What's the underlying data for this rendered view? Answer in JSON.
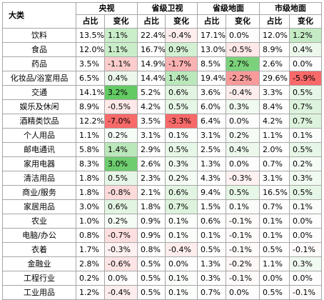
{
  "table": {
    "category_header": "大类",
    "groups": [
      "央视",
      "省级卫视",
      "省级地面",
      "市级地面"
    ],
    "subheaders": [
      "占比",
      "变化"
    ],
    "rows": [
      {
        "cat": "饮料",
        "v": [
          "13.5%",
          "1.1%",
          "22.4%",
          "-0.4%",
          "17.1%",
          "0.0%",
          "12.0%",
          "1.2%"
        ]
      },
      {
        "cat": "食品",
        "v": [
          "12.0%",
          "1.1%",
          "16.7%",
          "0.9%",
          "13.0%",
          "-0.5%",
          "8.9%",
          "0.4%"
        ]
      },
      {
        "cat": "药品",
        "v": [
          "3.5%",
          "-1.1%",
          "14.9%",
          "-1.7%",
          "8.5%",
          "2.7%",
          "2.6%",
          "0.0%"
        ]
      },
      {
        "cat": "化妆品/浴室用品",
        "v": [
          "6.5%",
          "0.4%",
          "14.4%",
          "1.4%",
          "19.4%",
          "-2.2%",
          "29.6%",
          "-5.9%"
        ]
      },
      {
        "cat": "交通",
        "v": [
          "14.1%",
          "3.2%",
          "5.2%",
          "0.6%",
          "3.6%",
          "-0.4%",
          "3.3%",
          "0.5%"
        ]
      },
      {
        "cat": "娱乐及休闲",
        "v": [
          "8.9%",
          "-0.5%",
          "4.2%",
          "0.5%",
          "6.0%",
          "0.3%",
          "8.4%",
          "0.7%"
        ]
      },
      {
        "cat": "酒精类饮品",
        "v": [
          "12.2%",
          "-7.0%",
          "3.5%",
          "-3.3%",
          "6.4%",
          "0.0%",
          "4.2%",
          "0.7%"
        ]
      },
      {
        "cat": "个人用品",
        "v": [
          "1.1%",
          "0.2%",
          "3.1%",
          "0.1%",
          "3.1%",
          "0.2%",
          "1.1%",
          "0.1%"
        ]
      },
      {
        "cat": "邮电通讯",
        "v": [
          "5.8%",
          "1.4%",
          "2.9%",
          "0.5%",
          "2.5%",
          "0.4%",
          "2.0%",
          "0.5%"
        ]
      },
      {
        "cat": "家用电器",
        "v": [
          "8.3%",
          "3.0%",
          "2.6%",
          "0.3%",
          "1.3%",
          "0.0%",
          "0.7%",
          "0.2%"
        ]
      },
      {
        "cat": "清洁用品",
        "v": [
          "1.8%",
          "0.5%",
          "2.3%",
          "0.2%",
          "4.3%",
          "-0.3%",
          "3.1%",
          "0.3%"
        ]
      },
      {
        "cat": "商业/服务",
        "v": [
          "1.8%",
          "-0.8%",
          "2.1%",
          "0.6%",
          "9.4%",
          "0.5%",
          "16.5%",
          "0.5%"
        ]
      },
      {
        "cat": "家居用品",
        "v": [
          "3.0%",
          "0.6%",
          "1.8%",
          "0.7%",
          "1.5%",
          "0.1%",
          "0.7%",
          "0.1%"
        ]
      },
      {
        "cat": "农业",
        "v": [
          "1.0%",
          "0.2%",
          "0.9%",
          "0.1%",
          "0.6%",
          "-0.1%",
          "0.1%",
          "0.0%"
        ]
      },
      {
        "cat": "电脑/办公",
        "v": [
          "0.8%",
          "-0.7%",
          "0.9%",
          "0.1%",
          "0.1%",
          "-0.1%",
          "0.1%",
          "0.0%"
        ]
      },
      {
        "cat": "衣着",
        "v": [
          "1.7%",
          "-0.3%",
          "0.8%",
          "-0.4%",
          "0.5%",
          "-0.1%",
          "0.5%",
          "-0.1%"
        ]
      },
      {
        "cat": "金融业",
        "v": [
          "2.8%",
          "-0.6%",
          "0.5%",
          "0.0%",
          "1.3%",
          "-0.2%",
          "1.1%",
          "0.3%"
        ]
      },
      {
        "cat": "工程行业",
        "v": [
          "0.2%",
          "0.0%",
          "0.5%",
          "0.1%",
          "0.3%",
          "-0.1%",
          "0.0%",
          "0.0%"
        ]
      },
      {
        "cat": "工业用品",
        "v": [
          "1.2%",
          "-0.4%",
          "0.5%",
          "0.1%",
          "0.7%",
          "0.0%",
          "0.5%",
          "-0.1%"
        ]
      }
    ]
  }
}
